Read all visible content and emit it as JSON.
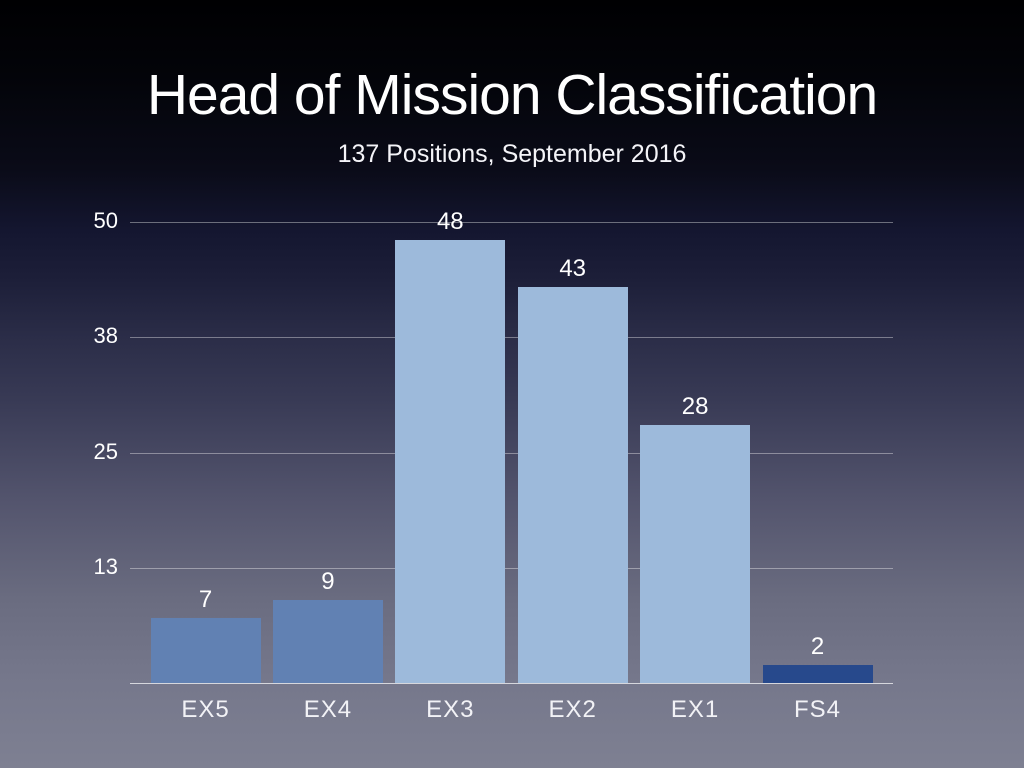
{
  "slide": {
    "title": "Head of Mission Classification",
    "subtitle": "137 Positions, September 2016"
  },
  "chart_data": {
    "type": "bar",
    "title": "Head of Mission Classification",
    "subtitle": "137 Positions, September 2016",
    "categories": [
      "EX5",
      "EX4",
      "EX3",
      "EX2",
      "EX1",
      "FS4"
    ],
    "values": [
      7,
      9,
      48,
      43,
      28,
      2
    ],
    "value_labels": [
      "7",
      "9",
      "48",
      "43",
      "28",
      "2"
    ],
    "bar_colors": [
      "#6181B3",
      "#6181B3",
      "#9DBADB",
      "#9DBADB",
      "#9DBADB",
      "#27498C"
    ],
    "yticks": [
      {
        "value": 50,
        "label": "50"
      },
      {
        "value": 37.5,
        "label": "38"
      },
      {
        "value": 25,
        "label": "25"
      },
      {
        "value": 12.5,
        "label": "13"
      }
    ],
    "ylim": [
      0,
      50
    ],
    "xlabel": "",
    "ylabel": "",
    "grid": true,
    "legend": "none",
    "colors": {
      "grid_line": "rgba(255,255,255,0.38)",
      "axis_line": "rgba(255,255,255,0.70)",
      "label_text": "#ffffff",
      "background_top": "#000002",
      "background_bottom": "#7e8092"
    }
  }
}
